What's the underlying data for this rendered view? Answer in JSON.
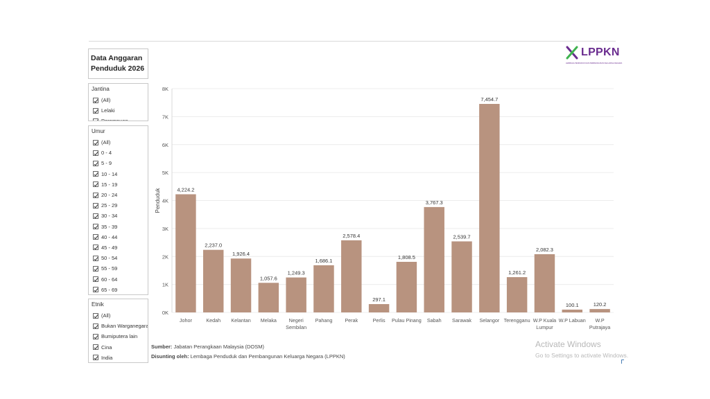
{
  "title": {
    "line1": "Data Anggaran",
    "line2": "Penduduk 2026"
  },
  "logo": {
    "name": "LPPKN",
    "tagline": "LEMBAGA PENDUDUK DAN PEMBANGUNAN KELUARGA NEGARA",
    "color": "#6a2c8f",
    "accent": "#3fb34f"
  },
  "filters": {
    "jantina": {
      "title": "Jantina",
      "options": [
        "(All)",
        "Lelaki",
        "Perempuan"
      ]
    },
    "umur": {
      "title": "Umur",
      "options": [
        "(All)",
        "0 - 4",
        "5 - 9",
        "10 - 14",
        "15 - 19",
        "20 - 24",
        "25 - 29",
        "30 - 34",
        "35 - 39",
        "40 - 44",
        "45 - 49",
        "50 - 54",
        "55 - 59",
        "60 - 64",
        "65 - 69"
      ]
    },
    "etnik": {
      "title": "Etnik",
      "options": [
        "(All)",
        "Bukan Warganegara",
        "Bumiputera lain",
        "Cina",
        "India"
      ]
    }
  },
  "chart_data": {
    "type": "bar",
    "ylabel": "Penduduk",
    "ylim": [
      0,
      8000
    ],
    "yticks": [
      0,
      1000,
      2000,
      3000,
      4000,
      5000,
      6000,
      7000,
      8000
    ],
    "ytick_labels": [
      "0K",
      "1K",
      "2K",
      "3K",
      "4K",
      "5K",
      "6K",
      "7K",
      "8K"
    ],
    "bar_color": "#b8937f",
    "categories": [
      [
        "Johor"
      ],
      [
        "Kedah"
      ],
      [
        "Kelantan"
      ],
      [
        "Melaka"
      ],
      [
        "Negeri",
        "Sembilan"
      ],
      [
        "Pahang"
      ],
      [
        "Perak"
      ],
      [
        "Perlis"
      ],
      [
        "Pulau Pinang"
      ],
      [
        "Sabah"
      ],
      [
        "Sarawak"
      ],
      [
        "Selangor"
      ],
      [
        "Terengganu"
      ],
      [
        "W.P Kuala",
        "Lumpur"
      ],
      [
        "W.P Labuan"
      ],
      [
        "W.P",
        "Putrajaya"
      ]
    ],
    "values": [
      4224.2,
      2237.0,
      1926.4,
      1057.6,
      1249.3,
      1686.1,
      2578.4,
      297.1,
      1808.5,
      3767.3,
      2539.7,
      7454.7,
      1261.2,
      2082.3,
      100.1,
      120.2
    ],
    "value_labels": [
      "4,224.2",
      "2,237.0",
      "1,926.4",
      "1,057.6",
      "1,249.3",
      "1,686.1",
      "2,578.4",
      "297.1",
      "1,808.5",
      "3,767.3",
      "2,539.7",
      "7,454.7",
      "1,261.2",
      "2,082.3",
      "100.1",
      "120.2"
    ]
  },
  "footer": {
    "source_label": "Sumber:",
    "source_text": "Jabatan Perangkaan Malaysia (DOSM)",
    "compiled_label": "Disunting oleh:",
    "compiled_text": "Lembaga Penduduk dan Pembangunan Keluarga Negara (LPPKN)"
  },
  "watermark": {
    "line1": "Activate Windows",
    "line2": "Go to Settings to activate Windows."
  }
}
